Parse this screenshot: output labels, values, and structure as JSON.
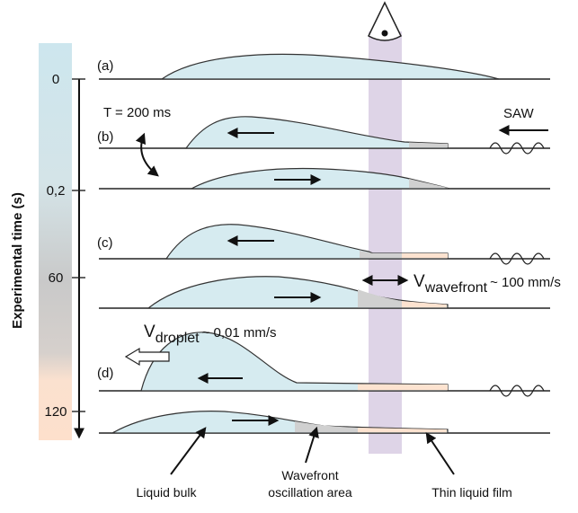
{
  "panels": [
    "(a)",
    "(b)",
    "(c)",
    "(d)"
  ],
  "time_axis": {
    "title": "Experimental time (s)",
    "ticks": [
      "0",
      "0,2",
      "60",
      "120"
    ]
  },
  "annotations": {
    "period": "T = 200 ms",
    "saw": "SAW",
    "wavefront_velocity": {
      "symbol": "V",
      "subscript": "wavefront",
      "value": "~ 100 mm/s"
    },
    "droplet_velocity": {
      "symbol": "V",
      "subscript": "droplet",
      "value": "~ 0,01 mm/s"
    }
  },
  "labels": {
    "liquid_bulk": "Liquid bulk",
    "wavefront_area": [
      "Wavefront",
      "oscillation area"
    ],
    "thin_film": "Thin liquid film"
  }
}
